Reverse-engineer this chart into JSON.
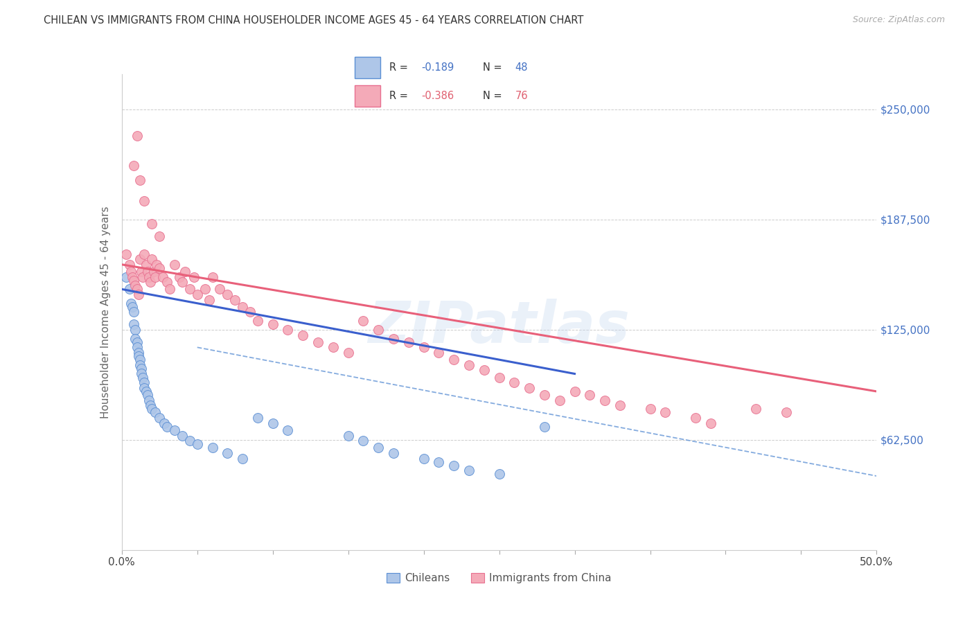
{
  "title": "CHILEAN VS IMMIGRANTS FROM CHINA HOUSEHOLDER INCOME AGES 45 - 64 YEARS CORRELATION CHART",
  "source": "Source: ZipAtlas.com",
  "ylabel": "Householder Income Ages 45 - 64 years",
  "xlim": [
    0.0,
    0.5
  ],
  "ylim": [
    0,
    270000
  ],
  "xtick_minor_count": 10,
  "xtick_labels_show": [
    "0.0%",
    "50.0%"
  ],
  "xtick_labels_pos": [
    0.0,
    0.5
  ],
  "ytick_labels": [
    "$62,500",
    "$125,000",
    "$187,500",
    "$250,000"
  ],
  "ytick_values": [
    62500,
    125000,
    187500,
    250000
  ],
  "watermark": "ZIPatlas",
  "legend_r_blue": "-0.189",
  "legend_n_blue": "48",
  "legend_r_pink": "-0.386",
  "legend_n_pink": "76",
  "legend_label_blue": "Chileans",
  "legend_label_pink": "Immigrants from China",
  "blue_fill": "#aec6e8",
  "pink_fill": "#f4aab8",
  "blue_edge": "#5b8fd4",
  "pink_edge": "#e87090",
  "blue_line_color": "#3a5fcd",
  "pink_line_color": "#e8607a",
  "text_blue_color": "#4472c4",
  "text_pink_color": "#e06070",
  "label_color": "#555555",
  "scatter_blue": [
    [
      0.003,
      155000
    ],
    [
      0.005,
      148000
    ],
    [
      0.006,
      140000
    ],
    [
      0.007,
      138000
    ],
    [
      0.008,
      135000
    ],
    [
      0.008,
      128000
    ],
    [
      0.009,
      125000
    ],
    [
      0.009,
      120000
    ],
    [
      0.01,
      118000
    ],
    [
      0.01,
      115000
    ],
    [
      0.011,
      112000
    ],
    [
      0.011,
      110000
    ],
    [
      0.012,
      108000
    ],
    [
      0.012,
      105000
    ],
    [
      0.013,
      103000
    ],
    [
      0.013,
      100000
    ],
    [
      0.014,
      98000
    ],
    [
      0.015,
      95000
    ],
    [
      0.015,
      92000
    ],
    [
      0.016,
      90000
    ],
    [
      0.017,
      88000
    ],
    [
      0.018,
      85000
    ],
    [
      0.019,
      82000
    ],
    [
      0.02,
      80000
    ],
    [
      0.022,
      78000
    ],
    [
      0.025,
      75000
    ],
    [
      0.028,
      72000
    ],
    [
      0.03,
      70000
    ],
    [
      0.035,
      68000
    ],
    [
      0.04,
      65000
    ],
    [
      0.045,
      62000
    ],
    [
      0.05,
      60000
    ],
    [
      0.06,
      58000
    ],
    [
      0.07,
      55000
    ],
    [
      0.08,
      52000
    ],
    [
      0.09,
      75000
    ],
    [
      0.1,
      72000
    ],
    [
      0.11,
      68000
    ],
    [
      0.15,
      65000
    ],
    [
      0.16,
      62000
    ],
    [
      0.17,
      58000
    ],
    [
      0.18,
      55000
    ],
    [
      0.2,
      52000
    ],
    [
      0.21,
      50000
    ],
    [
      0.22,
      48000
    ],
    [
      0.23,
      45000
    ],
    [
      0.25,
      43000
    ],
    [
      0.28,
      70000
    ]
  ],
  "scatter_pink": [
    [
      0.003,
      168000
    ],
    [
      0.005,
      162000
    ],
    [
      0.006,
      158000
    ],
    [
      0.007,
      155000
    ],
    [
      0.008,
      153000
    ],
    [
      0.009,
      150000
    ],
    [
      0.01,
      148000
    ],
    [
      0.011,
      145000
    ],
    [
      0.012,
      165000
    ],
    [
      0.013,
      158000
    ],
    [
      0.014,
      155000
    ],
    [
      0.015,
      168000
    ],
    [
      0.016,
      162000
    ],
    [
      0.017,
      158000
    ],
    [
      0.018,
      155000
    ],
    [
      0.019,
      152000
    ],
    [
      0.02,
      165000
    ],
    [
      0.021,
      158000
    ],
    [
      0.022,
      155000
    ],
    [
      0.023,
      162000
    ],
    [
      0.025,
      160000
    ],
    [
      0.027,
      155000
    ],
    [
      0.03,
      152000
    ],
    [
      0.032,
      148000
    ],
    [
      0.035,
      162000
    ],
    [
      0.038,
      155000
    ],
    [
      0.04,
      152000
    ],
    [
      0.042,
      158000
    ],
    [
      0.045,
      148000
    ],
    [
      0.048,
      155000
    ],
    [
      0.05,
      145000
    ],
    [
      0.055,
      148000
    ],
    [
      0.058,
      142000
    ],
    [
      0.06,
      155000
    ],
    [
      0.065,
      148000
    ],
    [
      0.07,
      145000
    ],
    [
      0.075,
      142000
    ],
    [
      0.08,
      138000
    ],
    [
      0.085,
      135000
    ],
    [
      0.09,
      130000
    ],
    [
      0.008,
      218000
    ],
    [
      0.01,
      235000
    ],
    [
      0.012,
      210000
    ],
    [
      0.015,
      198000
    ],
    [
      0.02,
      185000
    ],
    [
      0.025,
      178000
    ],
    [
      0.1,
      128000
    ],
    [
      0.11,
      125000
    ],
    [
      0.12,
      122000
    ],
    [
      0.13,
      118000
    ],
    [
      0.14,
      115000
    ],
    [
      0.15,
      112000
    ],
    [
      0.16,
      130000
    ],
    [
      0.17,
      125000
    ],
    [
      0.18,
      120000
    ],
    [
      0.19,
      118000
    ],
    [
      0.2,
      115000
    ],
    [
      0.21,
      112000
    ],
    [
      0.22,
      108000
    ],
    [
      0.23,
      105000
    ],
    [
      0.24,
      102000
    ],
    [
      0.25,
      98000
    ],
    [
      0.26,
      95000
    ],
    [
      0.27,
      92000
    ],
    [
      0.28,
      88000
    ],
    [
      0.29,
      85000
    ],
    [
      0.3,
      90000
    ],
    [
      0.31,
      88000
    ],
    [
      0.32,
      85000
    ],
    [
      0.33,
      82000
    ],
    [
      0.35,
      80000
    ],
    [
      0.36,
      78000
    ],
    [
      0.38,
      75000
    ],
    [
      0.39,
      72000
    ],
    [
      0.42,
      80000
    ],
    [
      0.44,
      78000
    ]
  ],
  "blue_trendline": [
    [
      0.0,
      148000
    ],
    [
      0.3,
      100000
    ]
  ],
  "pink_trendline": [
    [
      0.0,
      162000
    ],
    [
      0.5,
      90000
    ]
  ],
  "blue_dashed_line": [
    [
      0.05,
      115000
    ],
    [
      0.5,
      42000
    ]
  ],
  "background_color": "#ffffff",
  "grid_color": "#cccccc"
}
